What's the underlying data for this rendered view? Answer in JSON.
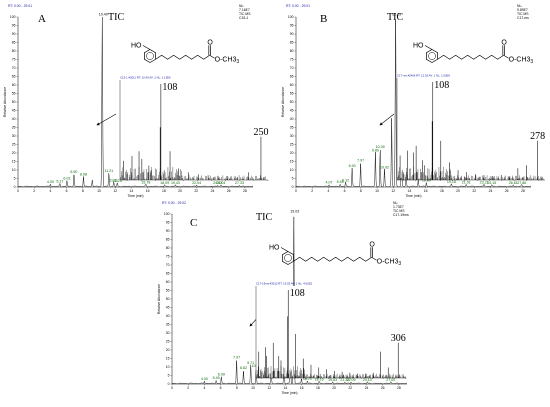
{
  "chart_data": [
    {
      "type": "line",
      "panel": "A",
      "trace_label": "TIC",
      "header_rt": "RT: 0.00 - 29.01",
      "info": [
        "NL:",
        "7.16E7",
        "TIC MS",
        "C15-1"
      ],
      "ylabel": "Relative Abundance",
      "xlabel": "Time (min)",
      "xlim": [
        0,
        29
      ],
      "ylim": [
        0,
        100
      ],
      "x_ticks": [
        0,
        2,
        4,
        6,
        8,
        10,
        12,
        14,
        16,
        18,
        20,
        22,
        24,
        26,
        28
      ],
      "y_ticks": [
        0,
        5,
        10,
        15,
        20,
        25,
        30,
        35,
        40,
        45,
        50,
        55,
        60,
        65,
        70,
        75,
        80,
        85,
        90,
        95,
        100
      ],
      "main_peak": {
        "x": 10.4,
        "y": 100,
        "label": "10.40"
      },
      "peaks": [
        {
          "x": 4.0,
          "y": 1.5,
          "label": "4.00"
        },
        {
          "x": 5.17,
          "y": 1.8,
          "label": "5.17"
        },
        {
          "x": 6.03,
          "y": 3.5,
          "label": "6.03"
        },
        {
          "x": 6.9,
          "y": 7.5,
          "label": "6.90"
        },
        {
          "x": 8.08,
          "y": 6.0,
          "label": "8.08"
        },
        {
          "x": 9.17,
          "y": 4.0,
          "label": ""
        },
        {
          "x": 11.21,
          "y": 8.0,
          "label": "11.21"
        },
        {
          "x": 11.81,
          "y": 2.5,
          "label": "11.81"
        },
        {
          "x": 12.25,
          "y": 2.0,
          "label": "12.25"
        },
        {
          "x": 15.78,
          "y": 1.2,
          "label": "15.78"
        },
        {
          "x": 18.09,
          "y": 1.0,
          "label": "18.09"
        },
        {
          "x": 19.43,
          "y": 1.0,
          "label": "19.43"
        },
        {
          "x": 22.04,
          "y": 1.0,
          "label": "22.04"
        },
        {
          "x": 24.63,
          "y": 0.8,
          "label": "24.63"
        },
        {
          "x": 25.04,
          "y": 0.8,
          "label": "25.04"
        },
        {
          "x": 27.33,
          "y": 0.8,
          "label": "27.33"
        }
      ],
      "inset": {
        "header": "C15-1 #2011 RT: 10.40 AV: 1 NL: 1.13E6",
        "xlim": [
          50,
          260
        ],
        "annotations": [
          {
            "mz": 108,
            "label": "108"
          },
          {
            "mz": 250,
            "label": "250"
          }
        ],
        "ions": [
          {
            "mz": 55,
            "i": 20
          },
          {
            "mz": 67,
            "i": 25
          },
          {
            "mz": 77,
            "i": 30
          },
          {
            "mz": 81,
            "i": 22
          },
          {
            "mz": 91,
            "i": 15
          },
          {
            "mz": 94,
            "i": 10
          },
          {
            "mz": 107,
            "i": 55
          },
          {
            "mz": 108,
            "i": 100
          },
          {
            "mz": 121,
            "i": 30
          },
          {
            "mz": 133,
            "i": 12
          },
          {
            "mz": 147,
            "i": 8
          },
          {
            "mz": 161,
            "i": 6
          },
          {
            "mz": 175,
            "i": 5
          },
          {
            "mz": 189,
            "i": 4
          },
          {
            "mz": 203,
            "i": 4
          },
          {
            "mz": 217,
            "i": 3
          },
          {
            "mz": 232,
            "i": 8
          },
          {
            "mz": 250,
            "i": 45
          }
        ]
      },
      "structure": {
        "ho": "HO",
        "carbonyl_o": "O",
        "ester": "O-CH3",
        "ester_subscript": "3",
        "chain_zigzag_vertices": 9
      }
    },
    {
      "type": "line",
      "panel": "B",
      "trace_label": "TIC",
      "header_rt": "RT: 0.00 - 29.01",
      "info": [
        "NL:",
        "9.89E7",
        "TIC MS",
        "C17-ms"
      ],
      "ylabel": "Relative Abundance",
      "xlabel": "Time (min)",
      "xlim": [
        0,
        29
      ],
      "ylim": [
        0,
        100
      ],
      "x_ticks": [
        0,
        2,
        4,
        6,
        8,
        10,
        12,
        14,
        16,
        18,
        20,
        22,
        24,
        26,
        28
      ],
      "y_ticks": [
        0,
        5,
        10,
        15,
        20,
        25,
        30,
        35,
        40,
        45,
        50,
        55,
        60,
        65,
        70,
        75,
        80,
        85,
        90,
        95,
        100
      ],
      "main_peak": {
        "x": 12.29,
        "y": 100,
        "label": "12.29"
      },
      "peaks": [
        {
          "x": 4.07,
          "y": 1.2,
          "label": "4.07"
        },
        {
          "x": 5.45,
          "y": 1.5,
          "label": "5.45"
        },
        {
          "x": 6.12,
          "y": 2.5,
          "label": "6.12"
        },
        {
          "x": 6.93,
          "y": 11.0,
          "label": "6.93"
        },
        {
          "x": 7.97,
          "y": 14.0,
          "label": "7.97"
        },
        {
          "x": 9.8,
          "y": 20.0,
          "label": "9.80"
        },
        {
          "x": 10.39,
          "y": 22.0,
          "label": "10.39"
        },
        {
          "x": 10.92,
          "y": 10.0,
          "label": "10.92"
        },
        {
          "x": 11.8,
          "y": 40.0,
          "label": ""
        },
        {
          "x": 13.02,
          "y": 23.0,
          "label": "13.02"
        },
        {
          "x": 13.59,
          "y": 8.0,
          "label": "13.59"
        },
        {
          "x": 15.09,
          "y": 4.0,
          "label": "15.09"
        },
        {
          "x": 16.09,
          "y": 2.5,
          "label": "16.09"
        },
        {
          "x": 19.18,
          "y": 1.5,
          "label": "19.18"
        },
        {
          "x": 21.01,
          "y": 1.2,
          "label": "21.01"
        },
        {
          "x": 23.21,
          "y": 1.2,
          "label": "23.21"
        },
        {
          "x": 24.15,
          "y": 1.0,
          "label": "24.15"
        },
        {
          "x": 26.81,
          "y": 1.0,
          "label": "26.81"
        },
        {
          "x": 27.86,
          "y": 1.0,
          "label": "27.86"
        }
      ],
      "inset": {
        "header": "C17-ms #2466 RT: 12.29 AV: 1 NL: 1.52E6",
        "xlim": [
          50,
          290
        ],
        "annotations": [
          {
            "mz": 108,
            "label": "108"
          },
          {
            "mz": 278,
            "label": "278"
          }
        ],
        "ions": [
          {
            "mz": 55,
            "i": 25
          },
          {
            "mz": 67,
            "i": 30
          },
          {
            "mz": 77,
            "i": 28
          },
          {
            "mz": 81,
            "i": 35
          },
          {
            "mz": 91,
            "i": 20
          },
          {
            "mz": 95,
            "i": 15
          },
          {
            "mz": 107,
            "i": 60
          },
          {
            "mz": 108,
            "i": 100
          },
          {
            "mz": 121,
            "i": 40
          },
          {
            "mz": 135,
            "i": 18
          },
          {
            "mz": 149,
            "i": 10
          },
          {
            "mz": 163,
            "i": 8
          },
          {
            "mz": 177,
            "i": 6
          },
          {
            "mz": 191,
            "i": 5
          },
          {
            "mz": 205,
            "i": 4
          },
          {
            "mz": 219,
            "i": 5
          },
          {
            "mz": 233,
            "i": 4
          },
          {
            "mz": 246,
            "i": 12
          },
          {
            "mz": 260,
            "i": 15
          },
          {
            "mz": 278,
            "i": 40
          }
        ]
      },
      "structure": {
        "ho": "HO",
        "carbonyl_o": "O",
        "ester": "O-CH3",
        "ester_subscript": "3",
        "chain_zigzag_vertices": 11
      }
    },
    {
      "type": "line",
      "panel": "C",
      "trace_label": "TIC",
      "header_rt": "RT: 0.00 - 29.02",
      "info": [
        "NL:",
        "1.73E7",
        "TIC MS",
        "C17-19ms"
      ],
      "ylabel": "Relative Abundance",
      "xlabel": "Time (min)",
      "xlim": [
        0,
        29
      ],
      "ylim": [
        0,
        100
      ],
      "x_ticks": [
        0,
        2,
        4,
        6,
        8,
        10,
        12,
        14,
        16,
        18,
        20,
        22,
        24,
        26,
        28
      ],
      "y_ticks": [
        0,
        5,
        10,
        15,
        20,
        25,
        30,
        35,
        40,
        45,
        50,
        55,
        60,
        65,
        70,
        75,
        80,
        85,
        90,
        95,
        100
      ],
      "main_peak": {
        "x": 15.03,
        "y": 100,
        "label": "15.03"
      },
      "peaks": [
        {
          "x": 4.0,
          "y": 1.5,
          "label": "4.00"
        },
        {
          "x": 5.45,
          "y": 2.0,
          "label": "5.45"
        },
        {
          "x": 6.09,
          "y": 4.0,
          "label": "6.09"
        },
        {
          "x": 7.97,
          "y": 14.0,
          "label": "7.97"
        },
        {
          "x": 8.82,
          "y": 8.0,
          "label": "8.82"
        },
        {
          "x": 9.71,
          "y": 11.0,
          "label": "9.71"
        },
        {
          "x": 10.39,
          "y": 9.0,
          "label": "10.39"
        },
        {
          "x": 12.24,
          "y": 7.0,
          "label": "12.24"
        },
        {
          "x": 13.82,
          "y": 15.0,
          "label": "13.82"
        },
        {
          "x": 14.6,
          "y": 30.0,
          "label": ""
        },
        {
          "x": 15.98,
          "y": 3.0,
          "label": "15.98"
        },
        {
          "x": 16.71,
          "y": 1.5,
          "label": "16.71"
        },
        {
          "x": 18.16,
          "y": 1.2,
          "label": "18.16"
        },
        {
          "x": 19.83,
          "y": 1.0,
          "label": "19.83"
        },
        {
          "x": 21.32,
          "y": 1.0,
          "label": "21.32"
        },
        {
          "x": 22.09,
          "y": 1.0,
          "label": "22.09"
        },
        {
          "x": 24.1,
          "y": 1.0,
          "label": "24.10"
        },
        {
          "x": 27.0,
          "y": 1.0,
          "label": "27.00"
        }
      ],
      "inset": {
        "header": "C17-19ms #3012 RT: 15.03 AV: 1 NL: 4.61E5",
        "xlim": [
          50,
          320
        ],
        "annotations": [
          {
            "mz": 108,
            "label": "108"
          },
          {
            "mz": 306,
            "label": "306"
          }
        ],
        "ions": [
          {
            "mz": 55,
            "i": 30
          },
          {
            "mz": 67,
            "i": 35
          },
          {
            "mz": 69,
            "i": 25
          },
          {
            "mz": 81,
            "i": 40
          },
          {
            "mz": 91,
            "i": 25
          },
          {
            "mz": 95,
            "i": 20
          },
          {
            "mz": 107,
            "i": 70
          },
          {
            "mz": 108,
            "i": 100
          },
          {
            "mz": 121,
            "i": 50
          },
          {
            "mz": 135,
            "i": 22
          },
          {
            "mz": 149,
            "i": 15
          },
          {
            "mz": 163,
            "i": 12
          },
          {
            "mz": 177,
            "i": 10
          },
          {
            "mz": 191,
            "i": 8
          },
          {
            "mz": 205,
            "i": 7
          },
          {
            "mz": 219,
            "i": 6
          },
          {
            "mz": 233,
            "i": 5
          },
          {
            "mz": 247,
            "i": 5
          },
          {
            "mz": 261,
            "i": 6
          },
          {
            "mz": 274,
            "i": 30
          },
          {
            "mz": 288,
            "i": 12
          },
          {
            "mz": 306,
            "i": 40
          }
        ]
      },
      "structure": {
        "ho": "HO",
        "carbonyl_o": "O",
        "ester": "O-CH3",
        "ester_subscript": "3",
        "chain_zigzag_vertices": 13
      }
    }
  ]
}
